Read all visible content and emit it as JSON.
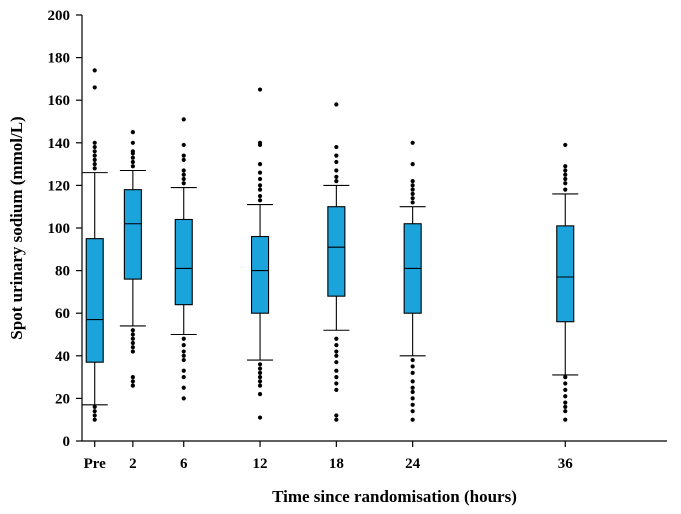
{
  "chart_data": {
    "type": "boxplot",
    "xlabel": "Time since randomisation (hours)",
    "ylabel": "Spot urinary sodium (mmol/L)",
    "ylim": [
      0,
      200
    ],
    "yticks": [
      0,
      20,
      40,
      60,
      80,
      100,
      120,
      140,
      160,
      180,
      200
    ],
    "grid": false,
    "box_color": "#1ba3dc",
    "categories": [
      "Pre",
      "2",
      "6",
      "12",
      "18",
      "24",
      "36"
    ],
    "x_positions_hours": [
      -1,
      2,
      6,
      12,
      18,
      24,
      36
    ],
    "boxes": [
      {
        "label": "Pre",
        "q1": 37,
        "median": 57,
        "q3": 95,
        "whisker_low": 17,
        "whisker_high": 126,
        "outliers": [
          10,
          12,
          14,
          16,
          128,
          130,
          132,
          134,
          136,
          138,
          140,
          166,
          174
        ]
      },
      {
        "label": "2",
        "q1": 76,
        "median": 102,
        "q3": 118,
        "whisker_low": 54,
        "whisker_high": 127,
        "outliers": [
          26,
          28,
          30,
          42,
          44,
          46,
          48,
          50,
          52,
          129,
          131,
          133,
          135,
          136,
          140,
          145
        ]
      },
      {
        "label": "6",
        "q1": 64,
        "median": 81,
        "q3": 104,
        "whisker_low": 50,
        "whisker_high": 119,
        "outliers": [
          20,
          25,
          30,
          33,
          38,
          40,
          42,
          45,
          48,
          121,
          123,
          125,
          127,
          132,
          134,
          139,
          151
        ]
      },
      {
        "label": "12",
        "q1": 60,
        "median": 80,
        "q3": 96,
        "whisker_low": 38,
        "whisker_high": 111,
        "outliers": [
          11,
          22,
          26,
          28,
          30,
          32,
          34,
          36,
          113,
          115,
          118,
          120,
          123,
          126,
          130,
          139,
          140,
          165
        ]
      },
      {
        "label": "18",
        "q1": 68,
        "median": 91,
        "q3": 110,
        "whisker_low": 52,
        "whisker_high": 120,
        "outliers": [
          10,
          12,
          24,
          27,
          30,
          33,
          37,
          40,
          42,
          45,
          48,
          122,
          124,
          127,
          131,
          134,
          138,
          158
        ]
      },
      {
        "label": "24",
        "q1": 60,
        "median": 81,
        "q3": 102,
        "whisker_low": 40,
        "whisker_high": 110,
        "outliers": [
          10,
          14,
          17,
          20,
          23,
          25,
          28,
          32,
          35,
          38,
          112,
          114,
          116,
          118,
          120,
          122,
          130,
          140
        ]
      },
      {
        "label": "36",
        "q1": 56,
        "median": 77,
        "q3": 101,
        "whisker_low": 31,
        "whisker_high": 116,
        "outliers": [
          10,
          14,
          16,
          18,
          21,
          24,
          27,
          30,
          118,
          121,
          123,
          125,
          127,
          129,
          139
        ]
      }
    ]
  }
}
